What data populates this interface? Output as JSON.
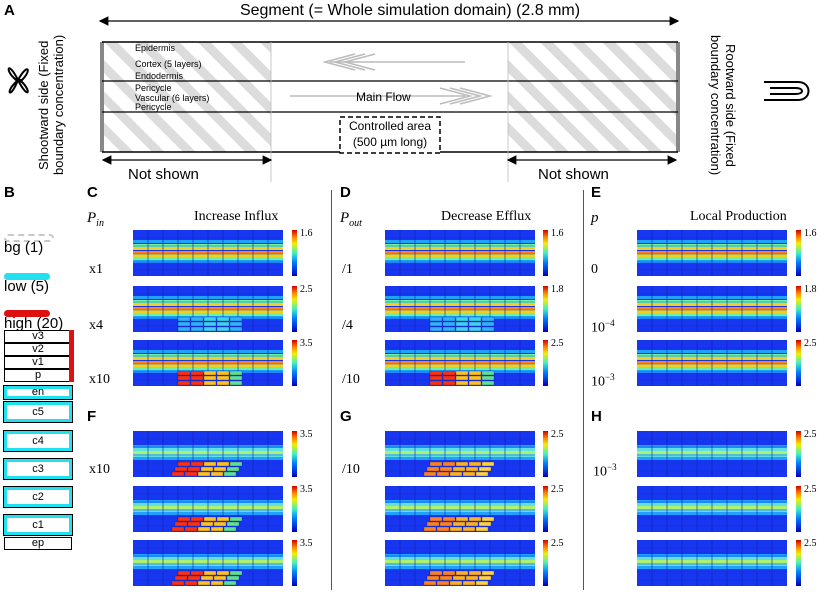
{
  "panel_a": {
    "letter": "A",
    "segment_title": "Segment (= Whole simulation domain) (2.8 mm)",
    "left_label": "Shootward side (Fixed boundary concentration)",
    "right_label": "Rootward side (Fixed boundary concentration)",
    "layers": [
      "Epidermis",
      "Cortex (5 layers)",
      "Endodermis",
      "Pericycle",
      "Vascular (6 layers)",
      "Pericycle"
    ],
    "main_flow": "Main Flow",
    "controlled_area_line1": "Controlled area",
    "controlled_area_line2": "(500 µm long)",
    "not_shown_left": "Not shown",
    "not_shown_right": "Not shown"
  },
  "panel_b": {
    "letter": "B",
    "legend": [
      {
        "label": "bg (1)",
        "color": "#c8c8c8"
      },
      {
        "label": "low (5)",
        "color": "#22e0f0"
      },
      {
        "label": "high (20)",
        "color": "#dd1111"
      }
    ],
    "layers": [
      "v3",
      "v2",
      "v1",
      "p",
      "en",
      "c5",
      "c4",
      "c3",
      "c2",
      "c1",
      "ep"
    ]
  },
  "panels_top": [
    {
      "letter": "C",
      "param": "P",
      "param_sub": "in",
      "title": "Increase Influx",
      "rows": [
        {
          "label": "x1",
          "max": "1.6"
        },
        {
          "label": "x4",
          "max": "2.5"
        },
        {
          "label": "x10",
          "max": "3.5"
        }
      ]
    },
    {
      "letter": "D",
      "param": "P",
      "param_sub": "out",
      "title": "Decrease Efflux",
      "rows": [
        {
          "label": "/1",
          "max": "1.6"
        },
        {
          "label": "/4",
          "max": "1.8"
        },
        {
          "label": "/10",
          "max": "2.5"
        }
      ]
    },
    {
      "letter": "E",
      "param": "p",
      "param_sub": "",
      "title": "Local Production",
      "rows": [
        {
          "label": "0",
          "max": "1.6"
        },
        {
          "label": "10",
          "sup": "−4",
          "max": "1.8"
        },
        {
          "label": "10",
          "sup": "−3",
          "max": "2.5"
        }
      ]
    }
  ],
  "panels_bottom": [
    {
      "letter": "F",
      "row_label": "x10",
      "row_sup": "",
      "maxes": [
        "3.5",
        "3.5",
        "3.5"
      ]
    },
    {
      "letter": "G",
      "row_label": "/10",
      "row_sup": "",
      "maxes": [
        "2.5",
        "2.5",
        "2.5"
      ]
    },
    {
      "letter": "H",
      "row_label": "10",
      "row_sup": "−3",
      "maxes": [
        "2.5",
        "2.5",
        "2.5"
      ]
    }
  ],
  "colors": {
    "heat_bg": "#1a3cff",
    "band_hot": "#e8c020",
    "band_warm": "#40e0d0",
    "boundary_gray": "#888888"
  }
}
